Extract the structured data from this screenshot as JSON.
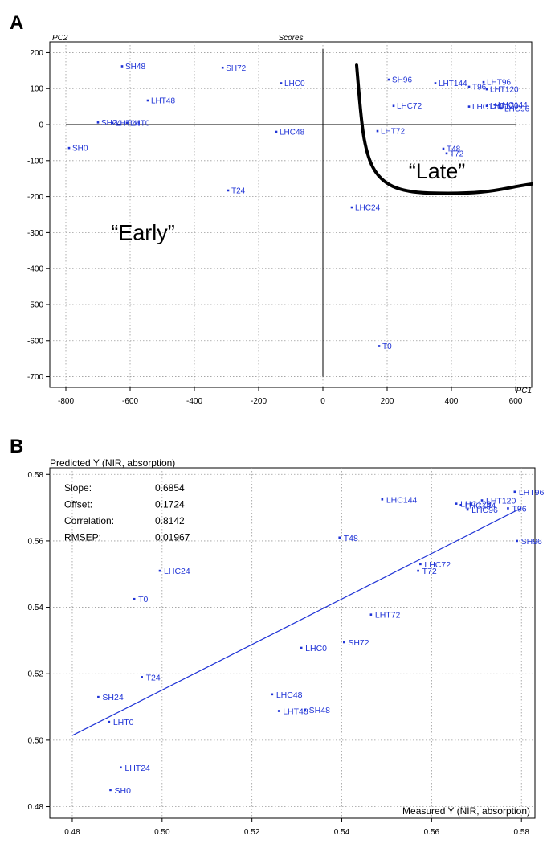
{
  "chart_data": [
    {
      "panel_label": "A",
      "type": "scatter",
      "title": "Scores",
      "xlabel": "PC1",
      "ylabel": "PC2",
      "xlim": [
        -850,
        650
      ],
      "ylim": [
        -730,
        230
      ],
      "xticks": [
        -800,
        -600,
        -400,
        -200,
        0,
        200,
        400,
        600
      ],
      "yticks": [
        200,
        100,
        0,
        -100,
        -200,
        -300,
        -400,
        -500,
        -600,
        -700
      ],
      "grid": true,
      "zero_lines": true,
      "point_color": "#1f33d6",
      "points": [
        {
          "label": "SH48",
          "x": -625,
          "y": 162
        },
        {
          "label": "SH72",
          "x": -312,
          "y": 158
        },
        {
          "label": "LHC0",
          "x": -130,
          "y": 115
        },
        {
          "label": "LHT48",
          "x": -545,
          "y": 67
        },
        {
          "label": "SH24",
          "x": -700,
          "y": 6
        },
        {
          "label": "LHT24",
          "x": -655,
          "y": 5
        },
        {
          "label": "LHT0",
          "x": -610,
          "y": 5
        },
        {
          "label": "SH0",
          "x": -790,
          "y": -65
        },
        {
          "label": "LHC48",
          "x": -145,
          "y": -20
        },
        {
          "label": "T24",
          "x": -295,
          "y": -183
        },
        {
          "label": "SH96",
          "x": 205,
          "y": 125
        },
        {
          "label": "LHT144",
          "x": 350,
          "y": 115
        },
        {
          "label": "T96",
          "x": 455,
          "y": 105
        },
        {
          "label": "LHT96",
          "x": 500,
          "y": 118
        },
        {
          "label": "LHT120",
          "x": 510,
          "y": 98
        },
        {
          "label": "LHC72",
          "x": 220,
          "y": 52
        },
        {
          "label": "LHC120",
          "x": 455,
          "y": 50
        },
        {
          "label": "LHT120",
          "x": 510,
          "y": 52
        },
        {
          "label": "LHC144",
          "x": 535,
          "y": 55
        },
        {
          "label": "LHC96",
          "x": 555,
          "y": 45
        },
        {
          "label": "LHT72",
          "x": 170,
          "y": -18
        },
        {
          "label": "T48",
          "x": 375,
          "y": -67
        },
        {
          "label": "T72",
          "x": 385,
          "y": -80
        },
        {
          "label": "LHC24",
          "x": 90,
          "y": -230
        },
        {
          "label": "T0",
          "x": 175,
          "y": -615
        }
      ],
      "annotations": [
        {
          "text": "“Early”",
          "x": -560,
          "y": -320
        },
        {
          "text": "“Late”",
          "x": 355,
          "y": -150
        }
      ]
    },
    {
      "panel_label": "B",
      "type": "scatter",
      "title": "",
      "xlabel": "Measured Y (NIR, absorption)",
      "ylabel": "Predicted Y (NIR, absorption)",
      "xlim": [
        0.475,
        0.583
      ],
      "ylim": [
        0.4765,
        0.582
      ],
      "xticks": [
        "0.48",
        "0.50",
        "0.52",
        "0.54",
        "0.56",
        "0.58"
      ],
      "yticks": [
        "0.58",
        "0.56",
        "0.54",
        "0.52",
        "0.50",
        "0.48"
      ],
      "grid": true,
      "point_color": "#1f33d6",
      "stats": [
        {
          "label": "Slope:",
          "value": "0.6854"
        },
        {
          "label": "Offset:",
          "value": "0.1724"
        },
        {
          "label": "Correlation:",
          "value": "0.8142"
        },
        {
          "label": "RMSEP:",
          "value": "0.01967"
        }
      ],
      "regression_line": {
        "x": [
          0.48,
          0.58
        ],
        "y": [
          0.5014,
          0.5699
        ]
      },
      "points": [
        {
          "label": "LHT96",
          "x": 0.5785,
          "y": 0.5748
        },
        {
          "label": "LHT120",
          "x": 0.5712,
          "y": 0.5722
        },
        {
          "label": "LHC120",
          "x": 0.5655,
          "y": 0.5712
        },
        {
          "label": "LHC144",
          "x": 0.5665,
          "y": 0.5708
        },
        {
          "label": "LHC96",
          "x": 0.568,
          "y": 0.5694
        },
        {
          "label": "T96",
          "x": 0.577,
          "y": 0.5698
        },
        {
          "label": "LHC144",
          "x": 0.549,
          "y": 0.5725
        },
        {
          "label": "T48",
          "x": 0.5395,
          "y": 0.561
        },
        {
          "label": "SH96",
          "x": 0.579,
          "y": 0.56
        },
        {
          "label": "LHC72",
          "x": 0.5575,
          "y": 0.553
        },
        {
          "label": "T72",
          "x": 0.557,
          "y": 0.551
        },
        {
          "label": "LHC24",
          "x": 0.4995,
          "y": 0.551
        },
        {
          "label": "T0",
          "x": 0.4938,
          "y": 0.5425
        },
        {
          "label": "LHT72",
          "x": 0.5465,
          "y": 0.5378
        },
        {
          "label": "SH72",
          "x": 0.5405,
          "y": 0.5295
        },
        {
          "label": "LHC0",
          "x": 0.531,
          "y": 0.5278
        },
        {
          "label": "T24",
          "x": 0.4955,
          "y": 0.519
        },
        {
          "label": "LHC48",
          "x": 0.5245,
          "y": 0.5138
        },
        {
          "label": "LHT48",
          "x": 0.526,
          "y": 0.5088
        },
        {
          "label": "SH48",
          "x": 0.5318,
          "y": 0.5092
        },
        {
          "label": "SH24",
          "x": 0.4858,
          "y": 0.513
        },
        {
          "label": "LHT0",
          "x": 0.4882,
          "y": 0.5055
        },
        {
          "label": "LHT24",
          "x": 0.4908,
          "y": 0.4918
        },
        {
          "label": "SH0",
          "x": 0.4885,
          "y": 0.485
        }
      ]
    }
  ]
}
